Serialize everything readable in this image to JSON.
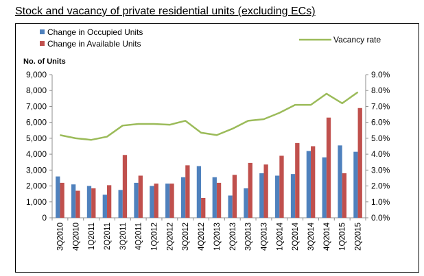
{
  "page_title": "Stock and vacancy of private residential units (excluding ECs)",
  "chart_data": {
    "type": "bar",
    "title": "Stock and vacancy of private residential units (excluding ECs)",
    "ylabel": "No. of Units",
    "xlabel": "",
    "ylim": [
      0,
      9000
    ],
    "y2lim": [
      0.0,
      9.0
    ],
    "y_ticks": [
      "0",
      "1,000",
      "2,000",
      "3,000",
      "4,000",
      "5,000",
      "6,000",
      "7,000",
      "8,000",
      "9,000"
    ],
    "y2_ticks": [
      "0.0%",
      "1.0%",
      "2.0%",
      "3.0%",
      "4.0%",
      "5.0%",
      "6.0%",
      "7.0%",
      "8.0%",
      "9.0%"
    ],
    "grid": false,
    "legend_placement": "top-left and top-right",
    "categories": [
      "3Q2010",
      "4Q2010",
      "1Q2011",
      "2Q2011",
      "3Q2011",
      "4Q2011",
      "1Q2012",
      "2Q2012",
      "3Q2012",
      "4Q2012",
      "1Q2013",
      "2Q2013",
      "3Q2013",
      "4Q2013",
      "1Q2014",
      "2Q2014",
      "3Q2014",
      "4Q2014",
      "1Q2015",
      "2Q2015"
    ],
    "series": [
      {
        "name": "Change in Occupied Units",
        "type": "bar",
        "color": "#4f81bd",
        "values": [
          2600,
          2100,
          2000,
          1450,
          1750,
          2200,
          2000,
          2150,
          2550,
          3250,
          2550,
          1400,
          1850,
          2800,
          2650,
          2750,
          4200,
          3800,
          4550,
          4150
        ]
      },
      {
        "name": "Change in Available Units",
        "type": "bar",
        "color": "#c0504d",
        "values": [
          2200,
          1700,
          1850,
          2050,
          3950,
          2650,
          2150,
          2150,
          3300,
          1250,
          2200,
          2700,
          3450,
          3350,
          3900,
          4700,
          4500,
          6300,
          2800,
          6900
        ]
      },
      {
        "name": "Vacancy rate",
        "type": "line",
        "axis": "right",
        "color": "#9bbb59",
        "values": [
          5.2,
          5.0,
          4.9,
          5.1,
          5.8,
          5.9,
          5.9,
          5.85,
          6.1,
          5.35,
          5.2,
          5.6,
          6.1,
          6.2,
          6.6,
          7.1,
          7.1,
          7.8,
          7.2,
          7.9
        ]
      }
    ]
  }
}
